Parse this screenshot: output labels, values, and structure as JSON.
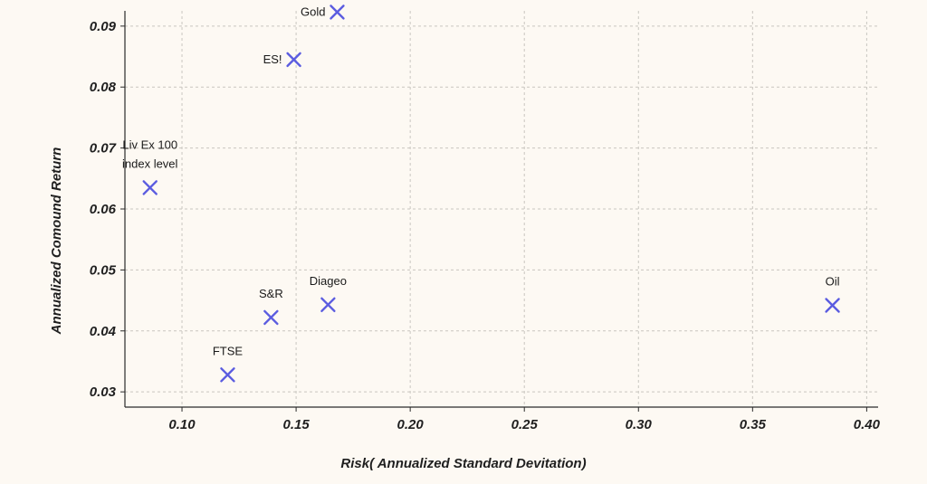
{
  "chart_data": {
    "type": "scatter",
    "title": "",
    "xlabel": "Risk( Annualized Standard Devitation)",
    "ylabel": "Annualized Comound Return",
    "xlim": [
      0.075,
      0.405
    ],
    "ylim": [
      0.0275,
      0.0925
    ],
    "x_ticks": [
      0.1,
      0.15,
      0.2,
      0.25,
      0.3,
      0.35,
      0.4
    ],
    "x_tick_labels": [
      "0.10",
      "0.15",
      "0.20",
      "0.25",
      "0.30",
      "0.35",
      "0.40"
    ],
    "y_ticks": [
      0.03,
      0.04,
      0.05,
      0.06,
      0.07,
      0.08,
      0.09
    ],
    "y_tick_labels": [
      "0.03",
      "0.04",
      "0.05",
      "0.06",
      "0.07",
      "0.08",
      "0.09"
    ],
    "grid": true,
    "marker": "x",
    "marker_color": "#5b5ce0",
    "points": [
      {
        "label": [
          "Gold"
        ],
        "x": 0.168,
        "y": 0.0923,
        "label_pos": "left"
      },
      {
        "label": [
          "ES!"
        ],
        "x": 0.149,
        "y": 0.0845,
        "label_pos": "left"
      },
      {
        "label": [
          "Liv Ex 100",
          "index level"
        ],
        "x": 0.086,
        "y": 0.0635,
        "label_pos": "above"
      },
      {
        "label": [
          "S&R"
        ],
        "x": 0.139,
        "y": 0.0422,
        "label_pos": "above"
      },
      {
        "label": [
          "Diageo"
        ],
        "x": 0.164,
        "y": 0.0443,
        "label_pos": "above"
      },
      {
        "label": [
          "FTSE"
        ],
        "x": 0.12,
        "y": 0.0328,
        "label_pos": "above"
      },
      {
        "label": [
          "Oil"
        ],
        "x": 0.385,
        "y": 0.0442,
        "label_pos": "above"
      }
    ]
  }
}
